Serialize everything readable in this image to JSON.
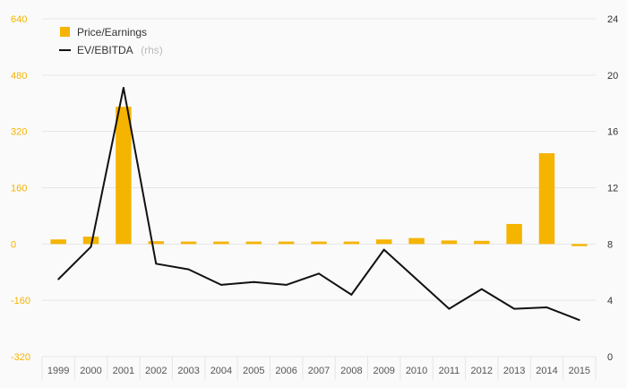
{
  "chart_data": {
    "type": "bar+line",
    "categories": [
      "1999",
      "2000",
      "2001",
      "2002",
      "2003",
      "2004",
      "2005",
      "2006",
      "2007",
      "2008",
      "2009",
      "2010",
      "2011",
      "2012",
      "2013",
      "2014",
      "2015"
    ],
    "series": [
      {
        "name": "Price/Earnings",
        "type": "bar",
        "axis": "left",
        "color": "#f5b400",
        "values": [
          13,
          21,
          390,
          8,
          7,
          7,
          7,
          7,
          7,
          7,
          13,
          17,
          10,
          9,
          57,
          258,
          -6
        ]
      },
      {
        "name": "EV/EBITDA",
        "axis_note": "(rhs)",
        "type": "line",
        "axis": "right",
        "color": "#111111",
        "values": [
          5.5,
          7.8,
          19.1,
          6.6,
          6.2,
          5.1,
          5.3,
          5.1,
          5.9,
          4.4,
          7.6,
          5.5,
          3.4,
          4.8,
          3.4,
          3.5,
          2.6
        ]
      }
    ],
    "left_axis": {
      "ylim": [
        -320,
        640
      ],
      "ticks": [
        -320,
        -160,
        0,
        160,
        320,
        480,
        640
      ],
      "color": "#f5b400"
    },
    "right_axis": {
      "ylim": [
        0,
        24
      ],
      "ticks": [
        0,
        4,
        8,
        12,
        16,
        20,
        24
      ],
      "color": "#333333"
    },
    "legend_position": "top-left",
    "grid": true
  }
}
